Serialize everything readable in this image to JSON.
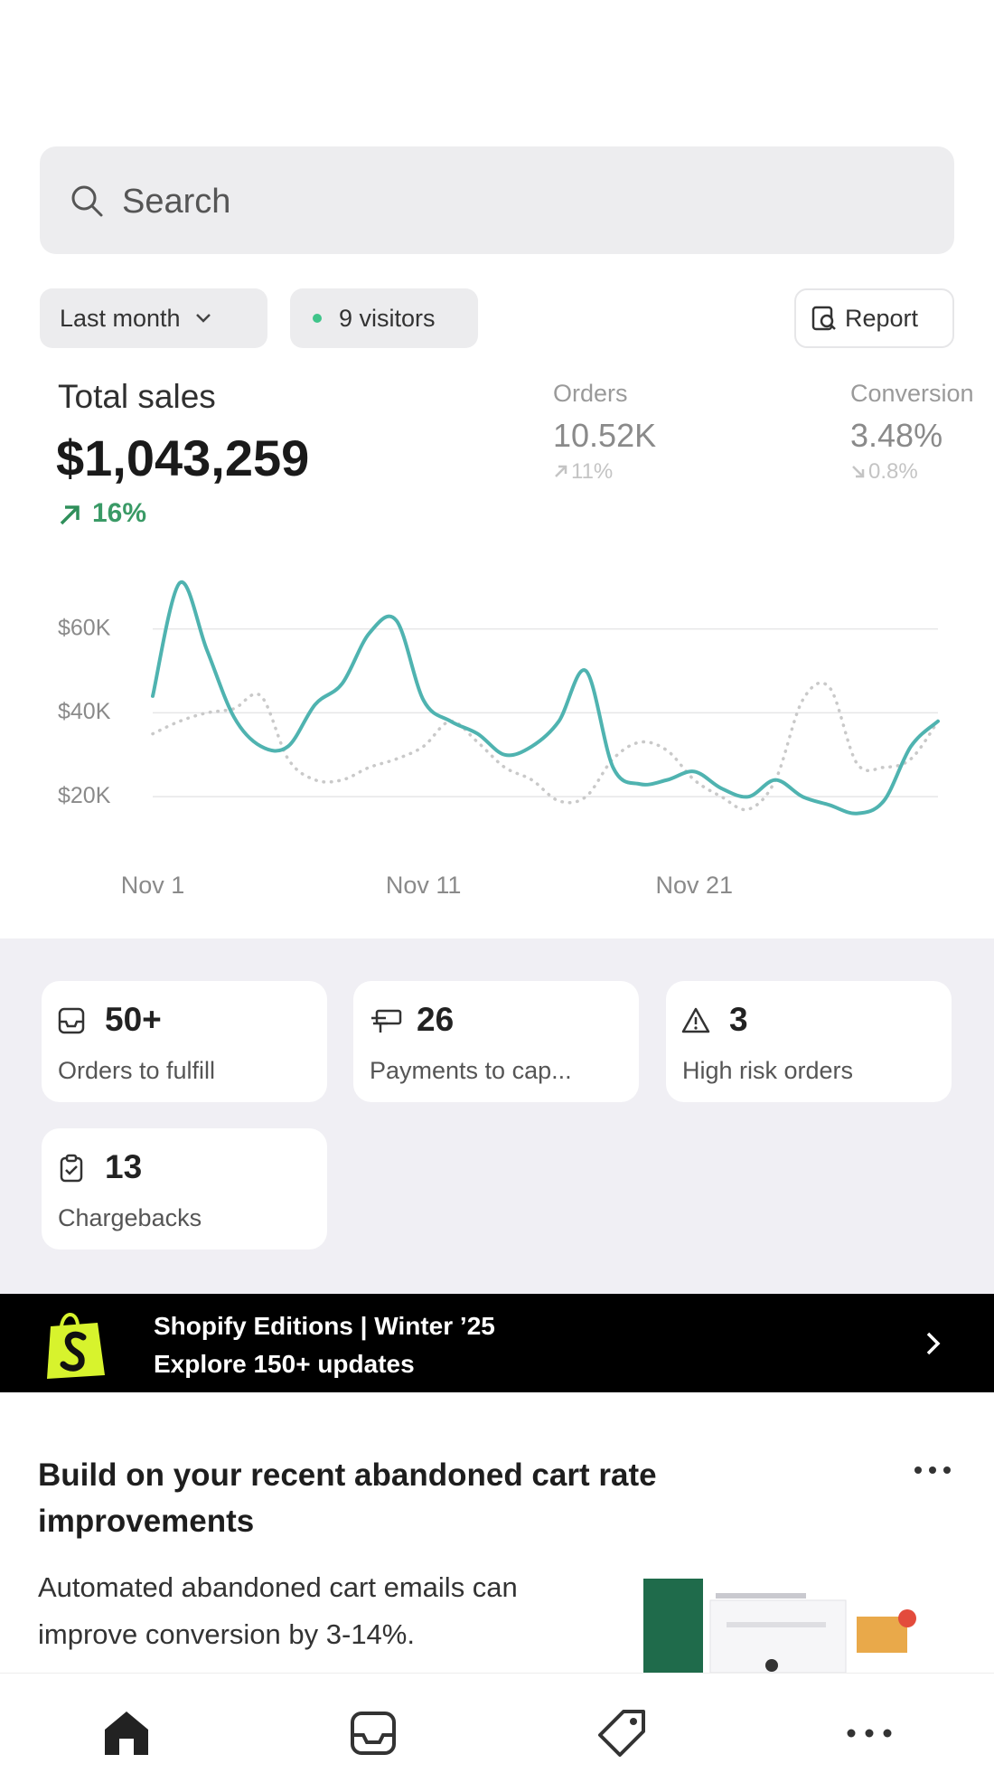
{
  "search": {
    "placeholder": "Search"
  },
  "filters": {
    "period": "Last month",
    "visitors": "9 visitors",
    "report": "Report"
  },
  "metrics": {
    "total_sales": {
      "label": "Total sales",
      "value": "$1,043,259",
      "change": "16%"
    },
    "orders": {
      "label": "Orders",
      "value": "10.52K",
      "change": "11%"
    },
    "conversion": {
      "label": "Conversion",
      "value": "3.48%",
      "change": "0.8%"
    }
  },
  "chart_data": {
    "type": "line",
    "categories": [
      "Nov 1",
      null,
      null,
      null,
      null,
      null,
      null,
      null,
      null,
      null,
      "Nov 11",
      null,
      null,
      null,
      null,
      null,
      null,
      null,
      null,
      null,
      "Nov 21",
      null,
      null,
      null,
      null,
      null,
      null,
      null,
      null,
      null
    ],
    "series": [
      {
        "color": "#4fb3b0",
        "line_style": "solid",
        "values": [
          44000,
          71000,
          55000,
          39000,
          32000,
          32000,
          42000,
          47000,
          59000,
          62000,
          43000,
          38000,
          35000,
          30000,
          32000,
          38000,
          50000,
          27000,
          23000,
          24000,
          26000,
          22000,
          20000,
          24000,
          20000,
          18000,
          16000,
          19000,
          32000,
          38000
        ]
      },
      {
        "color": "#c9c9c9",
        "line_style": "dotted",
        "values": [
          35000,
          38000,
          40000,
          41000,
          44000,
          29000,
          24000,
          24000,
          27000,
          29000,
          32000,
          38000,
          33000,
          27000,
          24000,
          19000,
          20000,
          29000,
          33000,
          31000,
          24000,
          20000,
          17000,
          24000,
          43000,
          46000,
          28000,
          27000,
          29000,
          38000
        ]
      }
    ],
    "ylim": [
      14000,
      72000
    ],
    "yticks": [
      {
        "value": 20000,
        "label": "$20K"
      },
      {
        "value": 40000,
        "label": "$40K"
      },
      {
        "value": 60000,
        "label": "$60K"
      }
    ],
    "grid": true
  },
  "tasks": [
    {
      "count": "50+",
      "label": "Orders to fulfill"
    },
    {
      "count": "26",
      "label": "Payments to cap..."
    },
    {
      "count": "3",
      "label": "High risk orders"
    },
    {
      "count": "13",
      "label": "Chargebacks"
    }
  ],
  "banner": {
    "title": "Shopify Editions | Winter ’25",
    "subtitle": "Explore 150+ updates"
  },
  "promo": {
    "title": "Build on your recent abandoned cart rate improvements",
    "body": "Automated abandoned cart emails can improve conversion by 3-14%."
  }
}
